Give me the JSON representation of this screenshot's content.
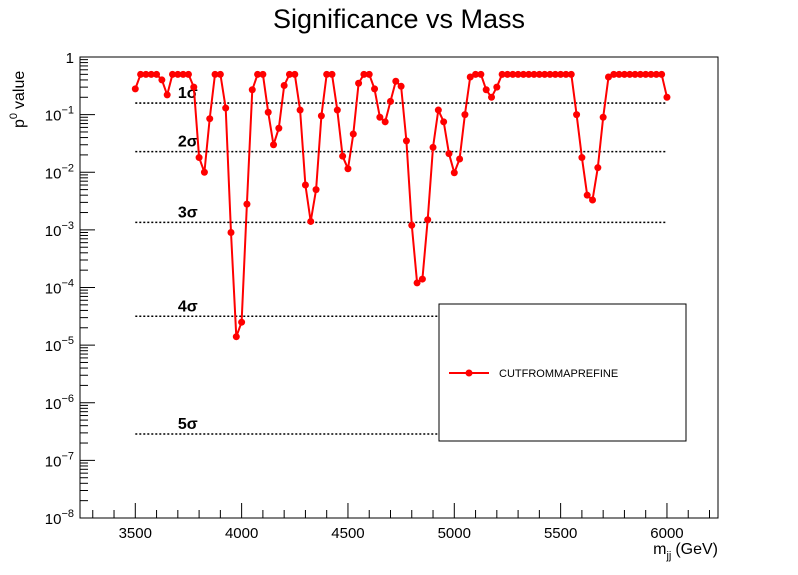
{
  "chart_data": {
    "type": "line",
    "title": "Significance vs Mass",
    "xlabel": "m_jj (GeV)",
    "xlabel_main": "m",
    "xlabel_sub": "jj",
    "xlabel_unit": "(GeV)",
    "ylabel": "p^0 value",
    "ylabel_main": "p",
    "ylabel_sup": "0",
    "ylabel_rest": "value",
    "xlim": [
      3240,
      6240
    ],
    "ylim": [
      1e-08,
      1
    ],
    "yscale": "log",
    "x_ticks": [
      3500,
      4000,
      4500,
      5000,
      5500,
      6000
    ],
    "y_ticks": [
      {
        "value": 1,
        "label": "1"
      },
      {
        "value": 0.1,
        "base": "10",
        "exp": "−1"
      },
      {
        "value": 0.01,
        "base": "10",
        "exp": "−2"
      },
      {
        "value": 0.001,
        "base": "10",
        "exp": "−3"
      },
      {
        "value": 0.0001,
        "base": "10",
        "exp": "−4"
      },
      {
        "value": 1e-05,
        "base": "10",
        "exp": "−5"
      },
      {
        "value": 1e-06,
        "base": "10",
        "exp": "−6"
      },
      {
        "value": 1e-07,
        "base": "10",
        "exp": "−7"
      },
      {
        "value": 1e-08,
        "base": "10",
        "exp": "−8"
      }
    ],
    "grid": false,
    "sigma_lines": [
      {
        "label": "1σ",
        "value": 0.159
      },
      {
        "label": "2σ",
        "value": 0.0228
      },
      {
        "label": "3σ",
        "value": 0.00135
      },
      {
        "label": "4σ",
        "value": 3.17e-05
      },
      {
        "label": "5σ",
        "value": 2.87e-07
      }
    ],
    "sigma_line_x_range": [
      3500,
      6000
    ],
    "legend_position": "lower-right",
    "series": [
      {
        "name": "CUTFROMMAPREFINE",
        "color": "#ff0000",
        "x": [
          3500,
          3525,
          3550,
          3575,
          3600,
          3625,
          3650,
          3675,
          3700,
          3725,
          3750,
          3775,
          3800,
          3825,
          3850,
          3875,
          3900,
          3925,
          3950,
          3975,
          4000,
          4025,
          4050,
          4075,
          4100,
          4125,
          4150,
          4175,
          4200,
          4225,
          4250,
          4275,
          4300,
          4325,
          4350,
          4375,
          4400,
          4425,
          4450,
          4475,
          4500,
          4525,
          4550,
          4575,
          4600,
          4625,
          4650,
          4675,
          4700,
          4725,
          4750,
          4775,
          4800,
          4825,
          4850,
          4875,
          4900,
          4925,
          4950,
          4975,
          5000,
          5025,
          5050,
          5075,
          5100,
          5125,
          5150,
          5175,
          5200,
          5225,
          5250,
          5275,
          5300,
          5325,
          5350,
          5375,
          5400,
          5425,
          5450,
          5475,
          5500,
          5525,
          5550,
          5575,
          5600,
          5625,
          5650,
          5675,
          5700,
          5725,
          5750,
          5775,
          5800,
          5825,
          5850,
          5875,
          5900,
          5925,
          5950,
          5975,
          6000
        ],
        "y": [
          0.28,
          0.5,
          0.5,
          0.5,
          0.5,
          0.4,
          0.22,
          0.5,
          0.5,
          0.5,
          0.5,
          0.3,
          0.018,
          0.01,
          0.085,
          0.5,
          0.5,
          0.13,
          0.0009,
          1.4e-05,
          2.5e-05,
          0.0028,
          0.27,
          0.5,
          0.5,
          0.11,
          0.03,
          0.058,
          0.32,
          0.5,
          0.5,
          0.12,
          0.006,
          0.0014,
          0.005,
          0.095,
          0.5,
          0.5,
          0.12,
          0.019,
          0.0115,
          0.046,
          0.35,
          0.5,
          0.5,
          0.28,
          0.09,
          0.075,
          0.17,
          0.38,
          0.31,
          0.035,
          0.0012,
          0.00012,
          0.00014,
          0.0015,
          0.027,
          0.12,
          0.075,
          0.021,
          0.0098,
          0.017,
          0.1,
          0.45,
          0.5,
          0.5,
          0.27,
          0.2,
          0.3,
          0.5,
          0.5,
          0.5,
          0.5,
          0.5,
          0.5,
          0.5,
          0.5,
          0.5,
          0.5,
          0.5,
          0.5,
          0.5,
          0.5,
          0.1,
          0.018,
          0.004,
          0.0033,
          0.012,
          0.09,
          0.45,
          0.5,
          0.5,
          0.5,
          0.5,
          0.5,
          0.5,
          0.5,
          0.5,
          0.5,
          0.5,
          0.2
        ]
      }
    ]
  }
}
